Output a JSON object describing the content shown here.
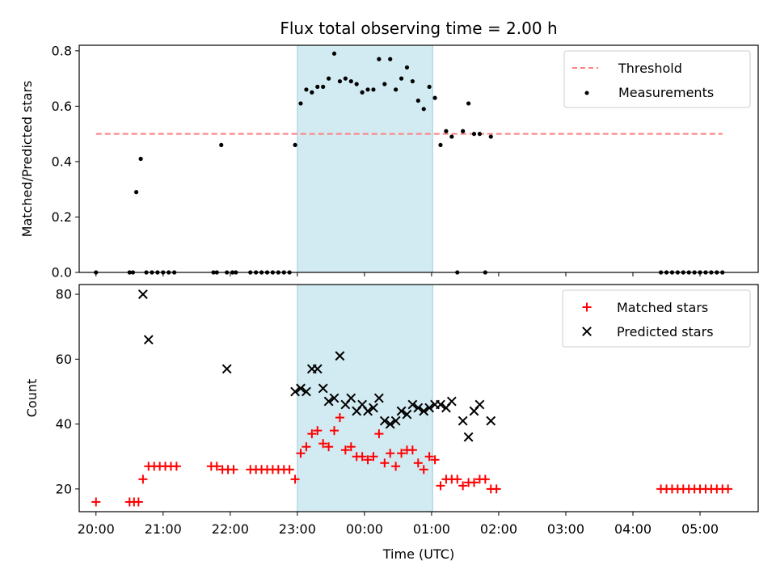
{
  "chart_data": [
    {
      "type": "scatter",
      "title": "Flux total observing time = 2.00 h",
      "xlabel": "",
      "ylabel": "Matched/Predicted stars",
      "ylim": [
        0,
        0.82
      ],
      "xlim": [
        "19:45",
        "05:52"
      ],
      "yticks": [
        "0.0",
        "0.2",
        "0.4",
        "0.6",
        "0.8"
      ],
      "shaded_interval": [
        "23:00",
        "01:01"
      ],
      "legend": {
        "placement": "top-right",
        "entries": [
          "Threshold",
          "Measurements"
        ]
      },
      "threshold": {
        "name": "Threshold",
        "value": 0.5,
        "x": [
          "20:00",
          "05:20"
        ],
        "color": "#ff7f7f"
      },
      "series": [
        {
          "name": "Measurements",
          "color": "#000000",
          "x": [
            "20:00",
            "20:30",
            "20:33",
            "20:36",
            "20:40",
            "20:45",
            "20:50",
            "20:55",
            "21:00",
            "21:05",
            "21:10",
            "21:45",
            "21:48",
            "21:52",
            "21:57",
            "22:02",
            "22:05",
            "22:18",
            "22:23",
            "22:28",
            "22:33",
            "22:38",
            "22:43",
            "22:48",
            "22:53",
            "22:58",
            "23:03",
            "23:08",
            "23:13",
            "23:18",
            "23:23",
            "23:28",
            "23:33",
            "23:38",
            "23:43",
            "23:48",
            "23:53",
            "23:58",
            "00:03",
            "00:08",
            "00:13",
            "00:18",
            "00:23",
            "00:28",
            "00:33",
            "00:38",
            "00:43",
            "00:48",
            "00:53",
            "00:58",
            "01:03",
            "01:08",
            "01:13",
            "01:18",
            "01:23",
            "01:28",
            "01:33",
            "01:38",
            "01:43",
            "01:48",
            "01:53",
            "04:25",
            "04:30",
            "04:35",
            "04:40",
            "04:45",
            "04:50",
            "04:55",
            "05:00",
            "05:05",
            "05:10",
            "05:15",
            "05:20"
          ],
          "y": [
            0,
            0,
            0,
            0.29,
            0.41,
            0,
            0,
            0,
            0,
            0,
            0,
            0,
            0,
            0.46,
            0,
            0,
            0,
            0,
            0,
            0,
            0,
            0,
            0,
            0,
            0,
            0.46,
            0.61,
            0.66,
            0.65,
            0.67,
            0.67,
            0.7,
            0.79,
            0.69,
            0.7,
            0.69,
            0.68,
            0.65,
            0.66,
            0.66,
            0.77,
            0.68,
            0.77,
            0.66,
            0.7,
            0.74,
            0.69,
            0.62,
            0.59,
            0.67,
            0.63,
            0.46,
            0.51,
            0.49,
            0,
            0.51,
            0.61,
            0.5,
            0.5,
            0,
            0.49,
            0,
            0,
            0,
            0,
            0,
            0,
            0,
            0,
            0,
            0,
            0,
            0
          ]
        }
      ]
    },
    {
      "type": "scatter",
      "title": "",
      "xlabel": "Time (UTC)",
      "ylabel": "Count",
      "ylim": [
        13,
        83
      ],
      "xlim": [
        "19:45",
        "05:52"
      ],
      "yticks": [
        "20",
        "40",
        "60",
        "80"
      ],
      "xticks": [
        "20:00",
        "21:00",
        "22:00",
        "23:00",
        "00:00",
        "01:00",
        "02:00",
        "03:00",
        "04:00",
        "05:00"
      ],
      "shaded_interval": [
        "23:00",
        "01:01"
      ],
      "legend": {
        "placement": "top-right",
        "entries": [
          "Matched stars",
          "Predicted stars"
        ]
      },
      "series": [
        {
          "name": "Matched stars",
          "color": "#ff0000",
          "marker": "plus",
          "x": [
            "20:00",
            "20:30",
            "20:34",
            "20:38",
            "20:42",
            "20:47",
            "20:52",
            "20:57",
            "21:02",
            "21:07",
            "21:12",
            "21:43",
            "21:48",
            "21:53",
            "21:58",
            "22:03",
            "22:18",
            "22:23",
            "22:28",
            "22:33",
            "22:38",
            "22:43",
            "22:48",
            "22:53",
            "22:58",
            "23:03",
            "23:08",
            "23:13",
            "23:18",
            "23:23",
            "23:28",
            "23:33",
            "23:38",
            "23:43",
            "23:48",
            "23:53",
            "23:58",
            "00:03",
            "00:08",
            "00:13",
            "00:18",
            "00:23",
            "00:28",
            "00:33",
            "00:38",
            "00:43",
            "00:48",
            "00:53",
            "00:58",
            "01:03",
            "01:08",
            "01:13",
            "01:18",
            "01:23",
            "01:28",
            "01:33",
            "01:38",
            "01:43",
            "01:48",
            "01:53",
            "01:58",
            "04:25",
            "04:30",
            "04:35",
            "04:40",
            "04:45",
            "04:50",
            "04:55",
            "05:00",
            "05:05",
            "05:10",
            "05:15",
            "05:20",
            "05:25"
          ],
          "y": [
            16,
            16,
            16,
            16,
            23,
            27,
            27,
            27,
            27,
            27,
            27,
            27,
            27,
            26,
            26,
            26,
            26,
            26,
            26,
            26,
            26,
            26,
            26,
            26,
            23,
            31,
            33,
            37,
            38,
            34,
            33,
            38,
            42,
            32,
            33,
            30,
            30,
            29,
            30,
            37,
            28,
            31,
            27,
            31,
            32,
            32,
            28,
            26,
            30,
            29,
            21,
            23,
            23,
            23,
            21,
            22,
            22,
            23,
            23,
            20,
            20,
            20,
            20,
            20,
            20,
            20,
            20,
            20,
            20,
            20,
            20,
            20,
            20,
            20
          ]
        },
        {
          "name": "Predicted stars",
          "color": "#000000",
          "marker": "x",
          "x": [
            "20:42",
            "20:47",
            "21:57",
            "22:58",
            "23:03",
            "23:08",
            "23:13",
            "23:18",
            "23:23",
            "23:28",
            "23:33",
            "23:38",
            "23:43",
            "23:48",
            "23:53",
            "23:58",
            "00:03",
            "00:08",
            "00:13",
            "00:18",
            "00:23",
            "00:28",
            "00:33",
            "00:38",
            "00:43",
            "00:48",
            "00:53",
            "00:58",
            "01:03",
            "01:08",
            "01:13",
            "01:18",
            "01:28",
            "01:33",
            "01:38",
            "01:43",
            "01:53"
          ],
          "y": [
            80,
            66,
            57,
            50,
            51,
            50,
            57,
            57,
            51,
            47,
            48,
            61,
            46,
            48,
            44,
            46,
            44,
            45,
            48,
            41,
            40,
            41,
            44,
            43,
            46,
            45,
            44,
            45,
            46,
            46,
            45,
            47,
            41,
            36,
            44,
            46,
            41
          ]
        }
      ]
    }
  ]
}
